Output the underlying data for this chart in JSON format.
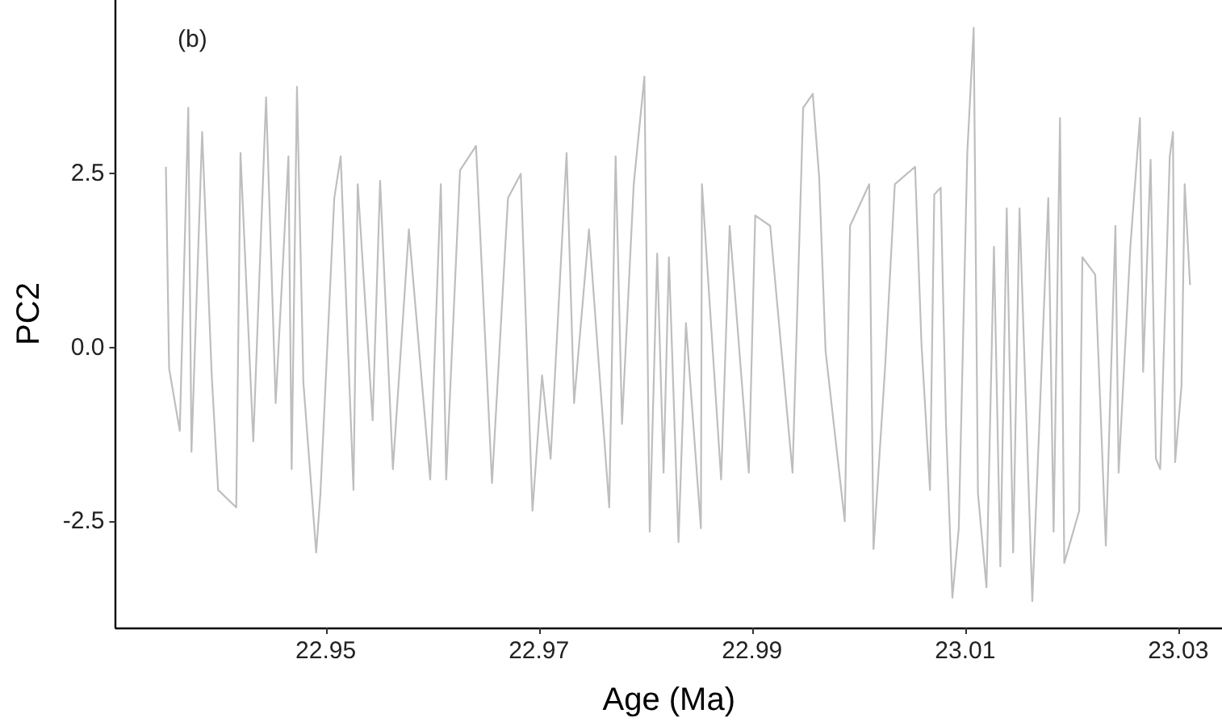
{
  "chart_data": {
    "type": "line",
    "xlabel": "Age (Ma)",
    "ylabel": "PC2",
    "annotations": [
      "(b)"
    ],
    "x": [
      22.935,
      22.9353,
      22.9363,
      22.9371,
      22.9374,
      22.9384,
      22.9393,
      22.9399,
      22.9416,
      22.942,
      22.9432,
      22.9444,
      22.9453,
      22.9465,
      22.9468,
      22.9473,
      22.9479,
      22.9491,
      22.9495,
      22.9508,
      22.9514,
      22.9526,
      22.953,
      22.9544,
      22.9551,
      22.9563,
      22.9578,
      22.9598,
      22.9608,
      22.9613,
      22.9626,
      22.9641,
      22.9656,
      22.9671,
      22.9683,
      22.9694,
      22.9703,
      22.9711,
      22.9726,
      22.9733,
      22.9747,
      22.9766,
      22.9772,
      22.9778,
      22.9789,
      22.9799,
      22.9804,
      22.9811,
      22.9817,
      22.9822,
      22.9831,
      22.9838,
      22.9852,
      22.9853,
      22.9871,
      22.9879,
      22.9897,
      22.9903,
      22.9917,
      22.9938,
      22.9948,
      22.9957,
      22.9963,
      22.9969,
      22.9987,
      22.9992,
      23.001,
      23.0014,
      23.0025,
      23.0034,
      23.0053,
      23.0059,
      23.0067,
      23.0071,
      23.0077,
      23.0082,
      23.0088,
      23.0094,
      23.0102,
      23.0108,
      23.0112,
      23.012,
      23.0127,
      23.0133,
      23.0139,
      23.0145,
      23.0151,
      23.0163,
      23.0178,
      23.0183,
      23.0189,
      23.0193,
      23.0207,
      23.021,
      23.0222,
      23.0232,
      23.0241,
      23.0244,
      23.0255,
      23.0264,
      23.0267,
      23.0274,
      23.0279,
      23.0283,
      23.0292,
      23.0295,
      23.0297,
      23.0303,
      23.0306,
      23.0311,
      23.0312
    ],
    "values": [
      2.6,
      -0.3,
      -1.2,
      3.45,
      -1.5,
      3.1,
      -0.4,
      -2.05,
      -2.3,
      2.8,
      -1.35,
      3.6,
      -0.8,
      2.75,
      -1.75,
      3.75,
      -0.5,
      -2.95,
      -2.1,
      2.15,
      2.75,
      -2.05,
      2.35,
      -1.05,
      2.4,
      -1.75,
      1.7,
      -1.9,
      2.35,
      -1.9,
      2.55,
      2.9,
      -1.95,
      2.15,
      2.5,
      -2.35,
      -0.4,
      -1.6,
      2.8,
      -0.8,
      1.7,
      -2.3,
      2.75,
      -1.1,
      2.35,
      3.9,
      -2.65,
      1.35,
      -1.8,
      1.3,
      -2.8,
      0.35,
      -2.6,
      2.35,
      -1.9,
      1.75,
      -1.8,
      1.9,
      1.75,
      -1.8,
      3.45,
      3.65,
      2.45,
      -0.05,
      -2.5,
      1.75,
      2.35,
      -2.9,
      -0.25,
      2.35,
      2.6,
      0.05,
      -2.05,
      2.2,
      2.3,
      -1.1,
      -3.6,
      -2.6,
      2.8,
      4.6,
      -2.1,
      -3.45,
      1.45,
      -3.15,
      2.0,
      -2.95,
      2.0,
      -3.65,
      2.15,
      -2.65,
      3.3,
      -3.1,
      -2.35,
      1.3,
      1.05,
      -2.85,
      1.75,
      -1.8,
      1.45,
      3.3,
      -0.35,
      2.7,
      -1.6,
      -1.75,
      2.75,
      3.1,
      -1.65,
      -0.55,
      2.35,
      0.9,
      0.9
    ],
    "color": "#bebebe",
    "marker": "none",
    "line_style": "solid",
    "grid": false,
    "xlim": [
      22.9303,
      23.0341
    ],
    "ylim": [
      -4.03,
      5.0
    ],
    "xticks": [
      22.95,
      22.97,
      22.99,
      23.01,
      23.03
    ],
    "yticks": [
      -2.5,
      {
        "value": 0,
        "label": "0.0"
      },
      2.5
    ]
  }
}
